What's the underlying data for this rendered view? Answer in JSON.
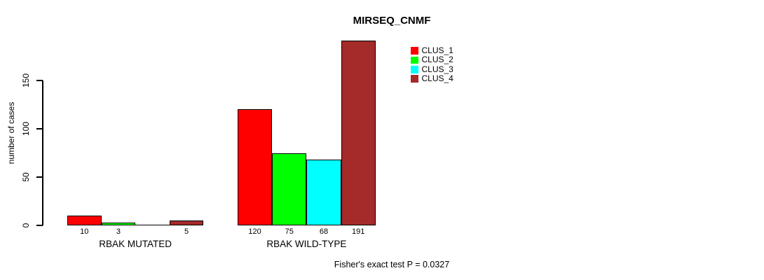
{
  "page": {
    "background": "#FFFFFF",
    "text_color": "#000000"
  },
  "chart_data": {
    "type": "bar",
    "title": "MIRSEQ_CNMF",
    "xlabel": "",
    "ylabel": "number of cases",
    "categories": [
      "RBAK MUTATED",
      "RBAK WILD-TYPE"
    ],
    "series": [
      {
        "name": "CLUS_1",
        "color": "#FF0000",
        "values": [
          10,
          120
        ]
      },
      {
        "name": "CLUS_2",
        "color": "#00FF00",
        "values": [
          3,
          75
        ]
      },
      {
        "name": "CLUS_3",
        "color": "#00FFFF",
        "values": [
          0,
          68
        ]
      },
      {
        "name": "CLUS_4",
        "color": "#A52A2A",
        "values": [
          5,
          191
        ]
      }
    ],
    "bar_value_labels": [
      [
        "10",
        "3",
        "",
        "5"
      ],
      [
        "120",
        "75",
        "68",
        "191"
      ]
    ],
    "yticks": [
      0,
      50,
      100,
      150
    ],
    "ytick_labels": [
      "0",
      "50",
      "100",
      "150"
    ],
    "ylim": [
      0,
      150
    ],
    "grid": false,
    "legend_position": "top-right",
    "annotation": "Fisher's exact test P = 0.0327",
    "bar_border_color": "#000000",
    "axis_color": "#000000"
  }
}
